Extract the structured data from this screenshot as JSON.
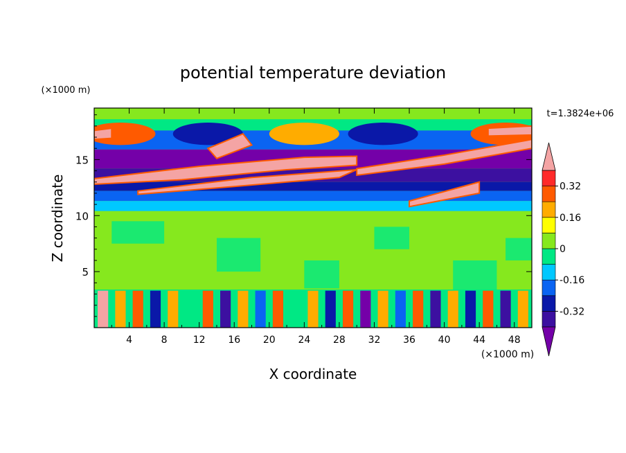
{
  "chart_data": {
    "type": "heatmap",
    "title": "potential temperature deviation",
    "xlabel": "X coordinate",
    "ylabel": "Z coordinate",
    "x_unit": "(×1000 m)",
    "y_unit": "(×1000 m)",
    "time_label": "t=1.3824e+06",
    "xlim": [
      0,
      50
    ],
    "ylim": [
      0,
      19.6
    ],
    "x_ticks": [
      4,
      8,
      12,
      16,
      20,
      24,
      28,
      32,
      36,
      40,
      44,
      48
    ],
    "y_ticks": [
      5,
      10,
      15
    ],
    "colorbar": {
      "levels": [
        -0.4,
        -0.32,
        -0.24,
        -0.16,
        -0.08,
        0,
        0.08,
        0.16,
        0.24,
        0.32,
        0.4
      ],
      "labels": [
        "0.32",
        "0.16",
        "0",
        "-0.16",
        "-0.32"
      ],
      "label_values": [
        0.32,
        0.16,
        0,
        -0.16,
        -0.32
      ],
      "colors": [
        "#7400a8",
        "#3c10a0",
        "#0a18a8",
        "#0a64f2",
        "#00c8ff",
        "#00e884",
        "#86e81e",
        "#ffff00",
        "#ffac00",
        "#ff5a00",
        "#ff2a2a",
        "#f4a4a4"
      ],
      "extend": "both"
    },
    "features": [
      {
        "z": 17.3,
        "x0": 0,
        "x1": 50,
        "value": -0.4,
        "desc": "upper undulating layer"
      },
      {
        "z": 14.3,
        "x0": 0,
        "x1": 50,
        "value": 0.42,
        "desc": "tilted warm bands"
      },
      {
        "z": 12.5,
        "x0": 0,
        "x1": 50,
        "value": -0.3,
        "desc": "cold band"
      },
      {
        "z": 11.5,
        "x0": 0,
        "x1": 50,
        "value": -0.12,
        "desc": "cool band"
      },
      {
        "z": 7.5,
        "x0": 0,
        "x1": 50,
        "value": 0.04,
        "desc": "near-zero mid troposphere"
      },
      {
        "z": 2.0,
        "x0": 0,
        "x1": 50,
        "value": 0.2,
        "desc": "boundary-layer plumes"
      }
    ]
  }
}
